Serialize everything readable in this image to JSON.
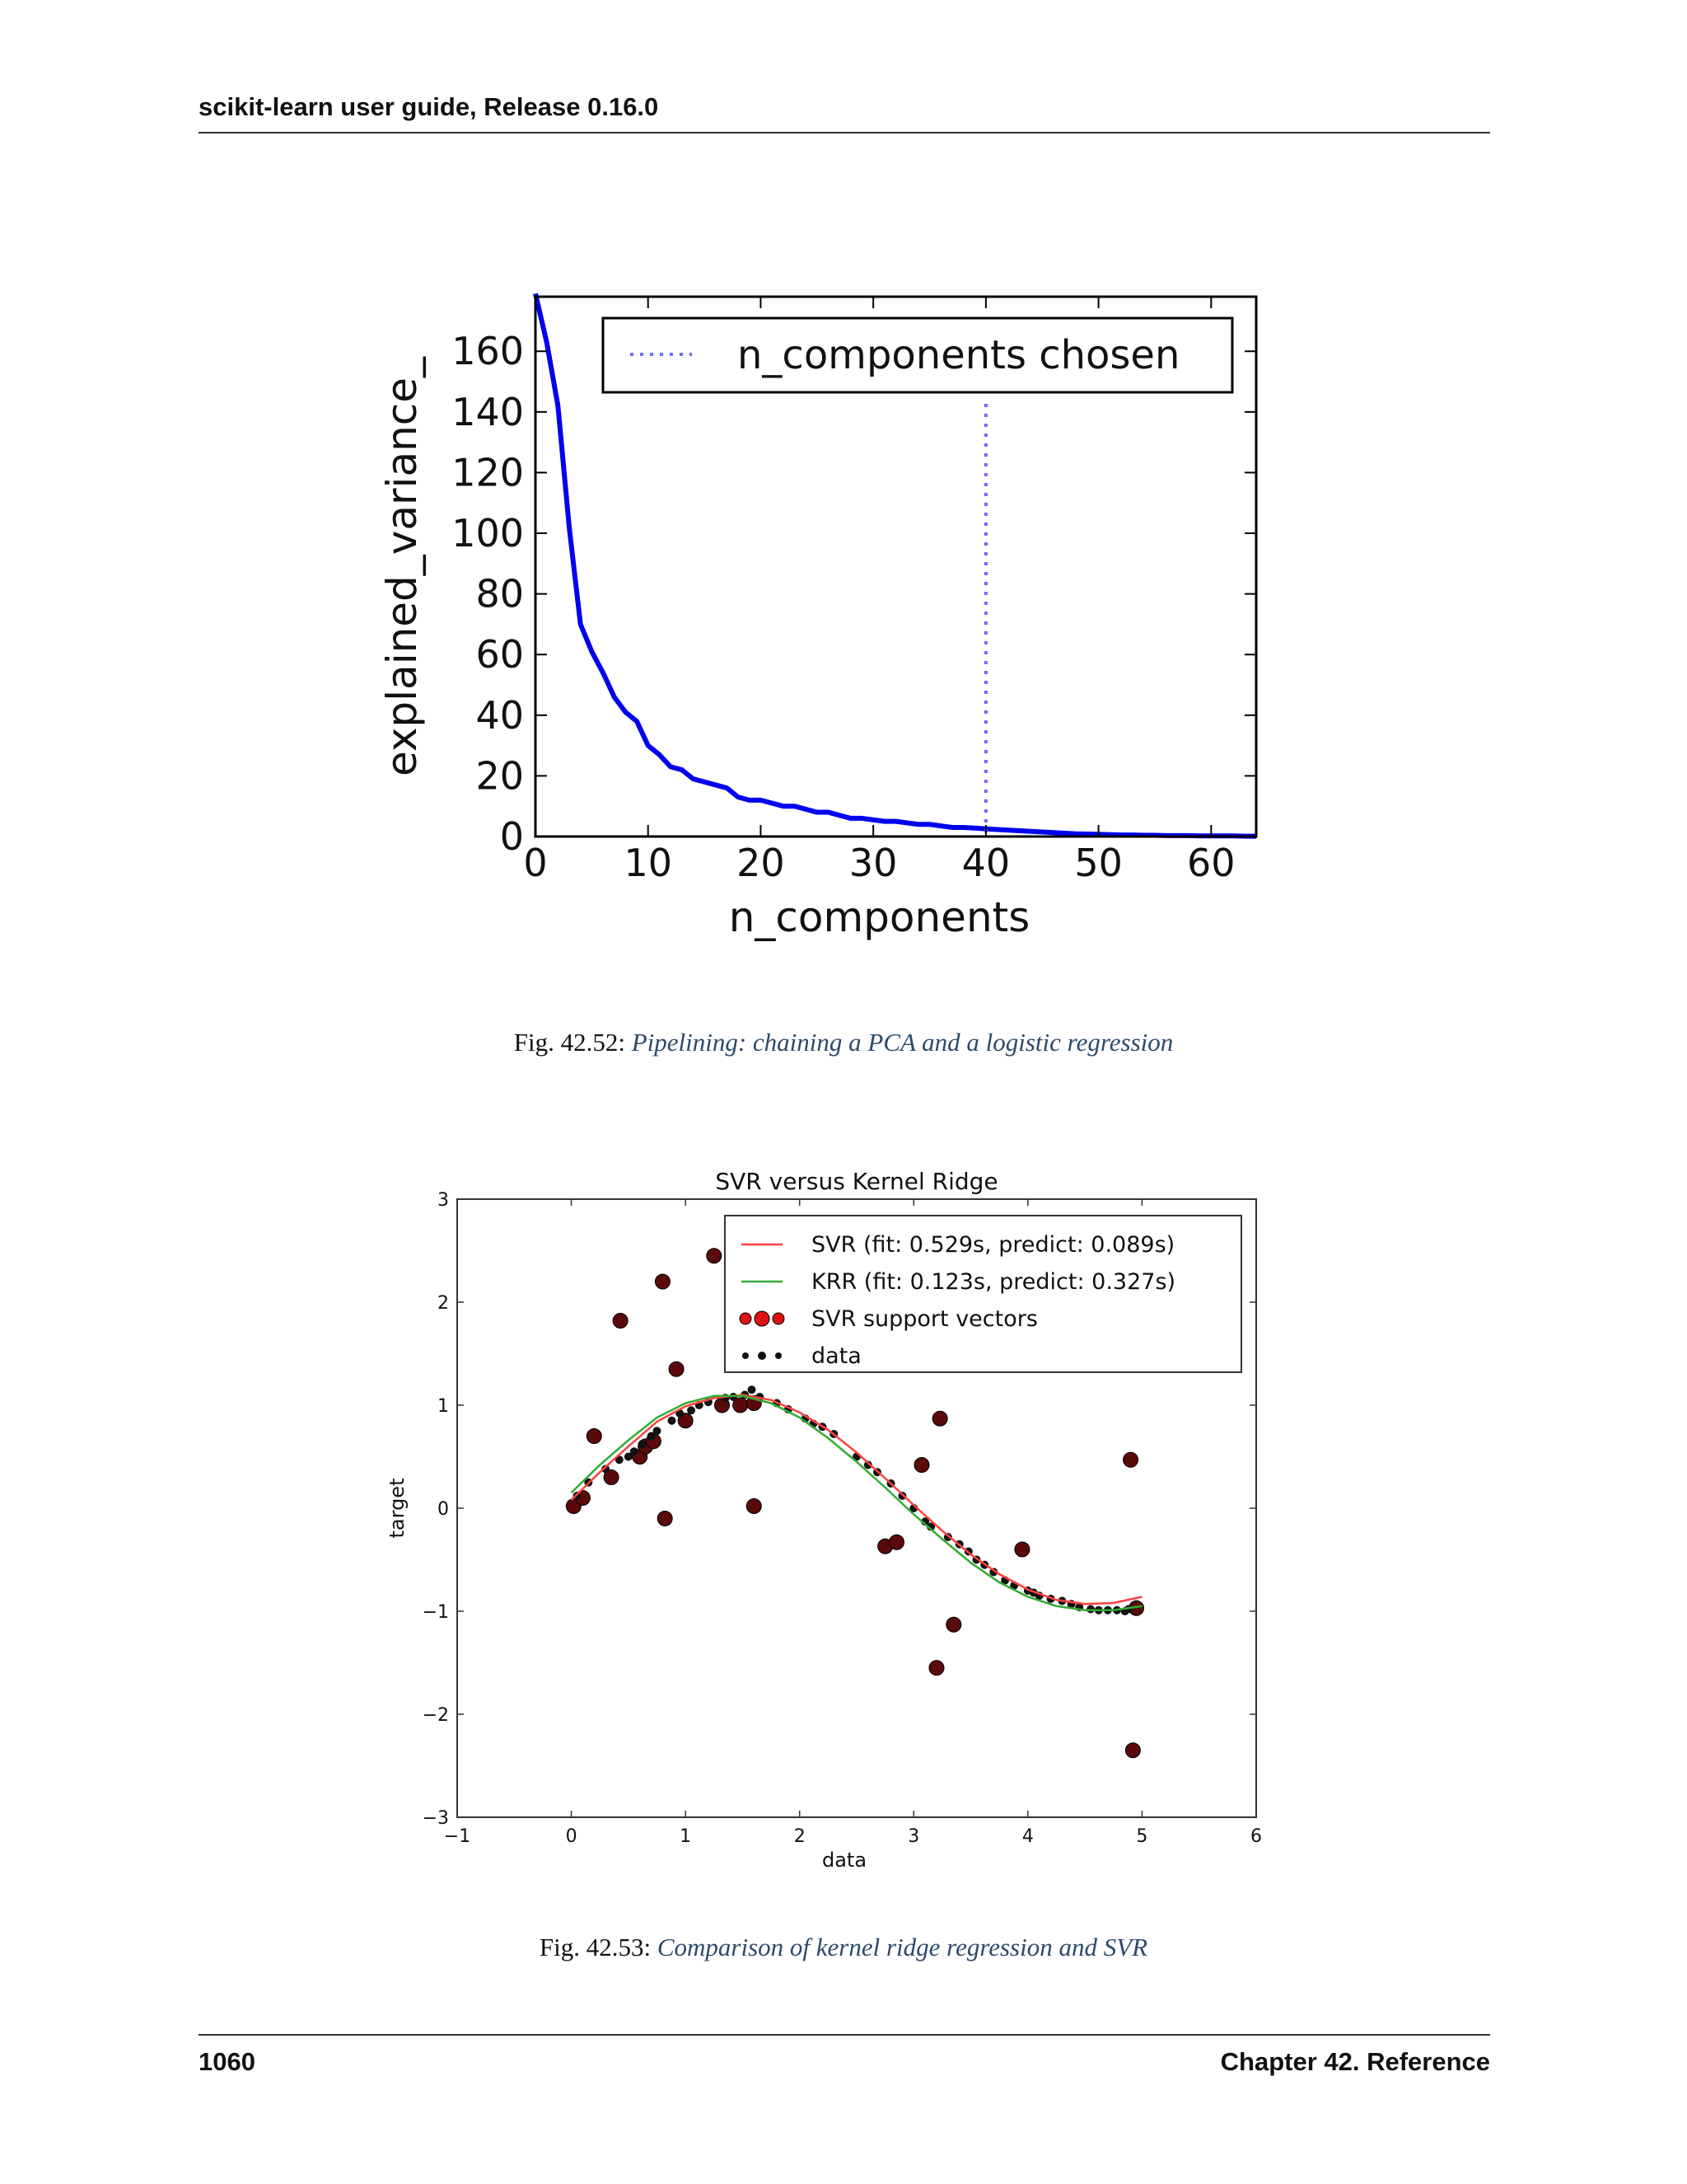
{
  "header": {
    "running_head": "scikit-learn user guide, Release 0.16.0"
  },
  "figures": [
    {
      "label": "Fig. 42.52:",
      "caption": "Pipelining: chaining a PCA and a logistic regression"
    },
    {
      "label": "Fig. 42.53:",
      "caption": "Comparison of kernel ridge regression and SVR"
    }
  ],
  "footer": {
    "page_number": "1060",
    "chapter": "Chapter 42. Reference"
  },
  "chart_data": [
    {
      "type": "line",
      "title": "",
      "xlabel": "n_components",
      "ylabel": "explained_variance_",
      "xlim": [
        0,
        64
      ],
      "ylim": [
        0,
        178
      ],
      "xticks": [
        0,
        10,
        20,
        30,
        40,
        50,
        60
      ],
      "yticks": [
        0,
        20,
        40,
        60,
        80,
        100,
        120,
        140,
        160
      ],
      "grid": false,
      "legend": {
        "position": "top-right",
        "entries": [
          {
            "label": "n_components chosen",
            "style": "dotted",
            "color": "#6b6bff"
          }
        ]
      },
      "series": [
        {
          "color": "#0000ee",
          "x": [
            0,
            1,
            2,
            3,
            4,
            5,
            6,
            7,
            8,
            9,
            10,
            11,
            12,
            13,
            14,
            15,
            16,
            17,
            18,
            19,
            20,
            21,
            22,
            23,
            24,
            25,
            26,
            27,
            28,
            29,
            30,
            31,
            32,
            33,
            34,
            35,
            36,
            37,
            38,
            39,
            40,
            41,
            42,
            43,
            44,
            45,
            46,
            47,
            48,
            49,
            50,
            51,
            52,
            53,
            54,
            55,
            56,
            57,
            58,
            59,
            60,
            61,
            62,
            63,
            64
          ],
          "y": [
            179,
            163,
            142,
            102,
            70,
            61,
            54,
            46,
            41,
            38,
            30,
            27,
            23,
            22,
            19,
            18,
            17,
            16,
            13,
            12,
            12,
            11,
            10,
            10,
            9,
            8,
            8,
            7,
            6,
            6,
            5.5,
            5,
            5,
            4.5,
            4,
            4,
            3.5,
            3,
            3,
            2.8,
            2.5,
            2.3,
            2.1,
            1.9,
            1.7,
            1.5,
            1.3,
            1.1,
            0.9,
            0.8,
            0.7,
            0.6,
            0.5,
            0.5,
            0.4,
            0.4,
            0.3,
            0.3,
            0.3,
            0.2,
            0.2,
            0.2,
            0.2,
            0.1,
            0.1
          ]
        }
      ],
      "vline": {
        "x": 40,
        "label": "n_components chosen",
        "color": "#6b6bff"
      }
    },
    {
      "type": "scatter",
      "title": "SVR versus Kernel Ridge",
      "xlabel": "data",
      "ylabel": "target",
      "xlim": [
        -1,
        6
      ],
      "ylim": [
        -3,
        3
      ],
      "xticks": [
        -1,
        0,
        1,
        2,
        3,
        4,
        5,
        6
      ],
      "yticks": [
        -3,
        -2,
        -1,
        0,
        1,
        2,
        3
      ],
      "tick_labels_x": [
        "−1",
        "0",
        "1",
        "2",
        "3",
        "4",
        "5",
        "6"
      ],
      "tick_labels_y": [
        "−3",
        "−2",
        "−1",
        "0",
        "1",
        "2",
        "3"
      ],
      "grid": false,
      "legend": {
        "position": "top-right",
        "entries": [
          {
            "label": "SVR (fit: 0.529s, predict: 0.089s)",
            "color": "#ff4040",
            "marker": "line"
          },
          {
            "label": "KRR (fit: 0.123s, predict: 0.327s)",
            "color": "#33aa33",
            "marker": "line"
          },
          {
            "label": "SVR support vectors",
            "color": "#dd1111",
            "marker": "bigdots"
          },
          {
            "label": "data",
            "color": "#111111",
            "marker": "dots"
          }
        ]
      },
      "series": [
        {
          "name": "SVR (fit: 0.529s, predict: 0.089s)",
          "type": "line",
          "color": "#ff4040",
          "x": [
            0,
            0.25,
            0.5,
            0.75,
            1,
            1.25,
            1.5,
            1.75,
            2,
            2.25,
            2.5,
            2.75,
            3,
            3.25,
            3.5,
            3.75,
            4,
            4.25,
            4.5,
            4.75,
            5
          ],
          "y": [
            0.08,
            0.35,
            0.6,
            0.84,
            0.99,
            1.07,
            1.1,
            1.05,
            0.93,
            0.76,
            0.54,
            0.29,
            0.03,
            -0.22,
            -0.45,
            -0.64,
            -0.79,
            -0.89,
            -0.93,
            -0.92,
            -0.86
          ]
        },
        {
          "name": "KRR (fit: 0.123s, predict: 0.327s)",
          "type": "line",
          "color": "#33aa33",
          "x": [
            0,
            0.25,
            0.5,
            0.75,
            1,
            1.25,
            1.5,
            1.75,
            2,
            2.25,
            2.5,
            2.75,
            3,
            3.25,
            3.5,
            3.75,
            4,
            4.25,
            4.5,
            4.75,
            5
          ],
          "y": [
            0.15,
            0.42,
            0.66,
            0.88,
            1.02,
            1.09,
            1.09,
            1.02,
            0.88,
            0.68,
            0.45,
            0.2,
            -0.06,
            -0.3,
            -0.53,
            -0.72,
            -0.86,
            -0.95,
            -0.99,
            -0.99,
            -0.95
          ]
        },
        {
          "name": "SVR support vectors",
          "type": "scatter",
          "color": "#5a0a0a",
          "x": [
            0.02,
            0.1,
            0.2,
            0.35,
            0.43,
            0.6,
            0.65,
            0.72,
            0.8,
            0.82,
            0.92,
            1.0,
            1.25,
            1.32,
            1.48,
            1.6,
            1.6,
            2.75,
            2.85,
            3.07,
            3.2,
            3.23,
            3.35,
            3.95,
            4.9,
            4.92,
            4.95
          ],
          "y": [
            0.02,
            0.1,
            0.7,
            0.3,
            1.82,
            0.5,
            0.6,
            0.65,
            2.2,
            -0.1,
            1.35,
            0.85,
            2.45,
            1.0,
            1.0,
            1.02,
            0.02,
            -0.37,
            -0.33,
            0.42,
            -1.55,
            0.87,
            -1.13,
            -0.4,
            0.47,
            -2.35,
            -0.97
          ]
        },
        {
          "name": "data",
          "type": "scatter",
          "color": "#111111",
          "x": [
            0.05,
            0.15,
            0.3,
            0.42,
            0.5,
            0.55,
            0.62,
            0.7,
            0.75,
            0.88,
            0.95,
            1.05,
            1.12,
            1.2,
            1.35,
            1.42,
            1.52,
            1.58,
            1.65,
            1.8,
            1.9,
            2.05,
            2.12,
            2.2,
            2.3,
            2.5,
            2.6,
            2.68,
            2.8,
            2.9,
            3.0,
            3.1,
            3.15,
            3.3,
            3.4,
            3.48,
            3.55,
            3.62,
            3.7,
            3.8,
            3.88,
            4.0,
            4.05,
            4.1,
            4.2,
            4.3,
            4.38,
            4.45,
            4.55,
            4.62,
            4.7,
            4.78,
            4.85,
            4.88
          ],
          "y": [
            0.12,
            0.25,
            0.38,
            0.47,
            0.5,
            0.55,
            0.62,
            0.7,
            0.75,
            0.85,
            0.92,
            0.95,
            1.0,
            1.03,
            1.07,
            1.08,
            1.1,
            1.15,
            1.08,
            1.02,
            0.96,
            0.87,
            0.82,
            0.79,
            0.72,
            0.5,
            0.42,
            0.35,
            0.24,
            0.12,
            0.0,
            -0.13,
            -0.18,
            -0.28,
            -0.35,
            -0.42,
            -0.5,
            -0.55,
            -0.62,
            -0.7,
            -0.75,
            -0.8,
            -0.82,
            -0.85,
            -0.88,
            -0.9,
            -0.93,
            -0.96,
            -0.98,
            -0.99,
            -0.99,
            -0.99,
            -1.0,
            -0.98
          ]
        }
      ]
    }
  ]
}
